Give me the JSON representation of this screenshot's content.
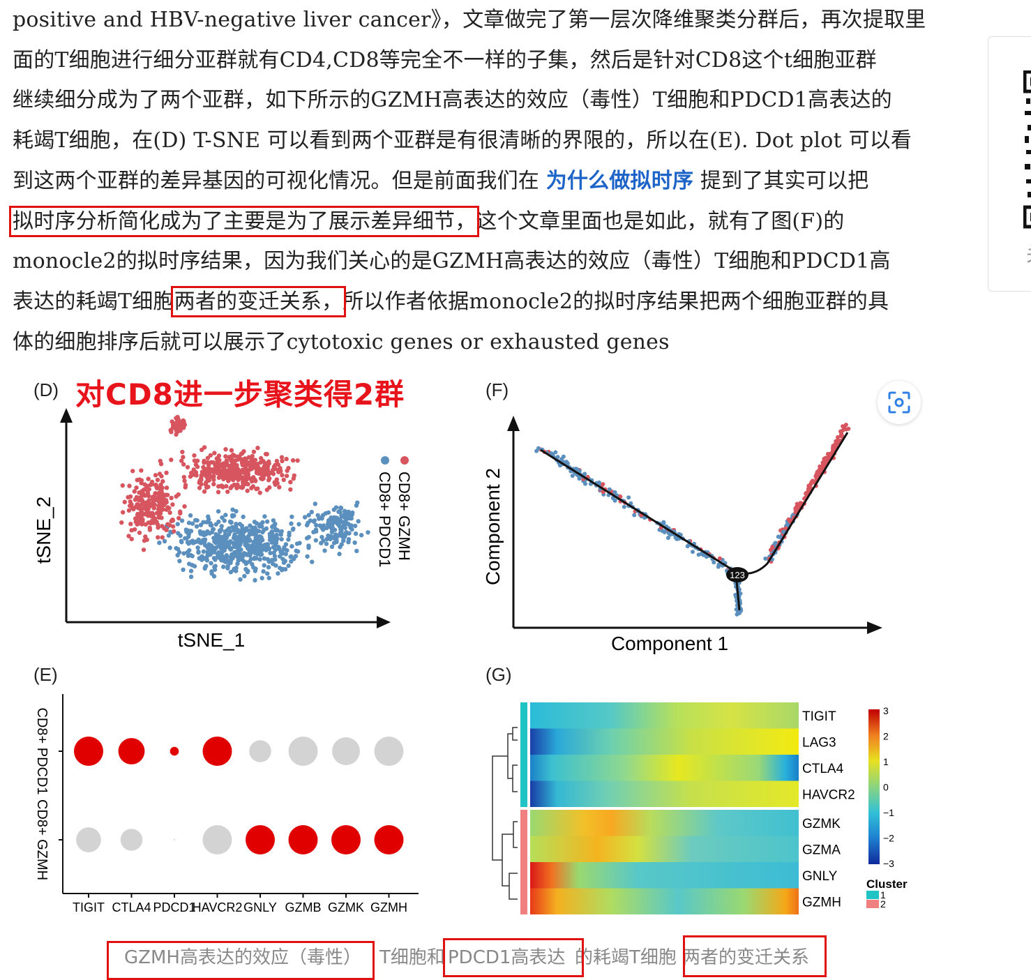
{
  "paragraph": {
    "line1": "positive and HBV-negative  liver cancer》，文章做完了第一层次降维聚类分群后，再次提取里",
    "line2": "面的T细胞进行细分亚群就有CD4,CD8等完全不一样的子集，然后是针对CD8这个t细胞亚群",
    "line3": "继续细分成为了两个亚群，如下所示的GZMH高表达的效应（毒性）T细胞和PDCD1高表达的",
    "line4": "耗竭T细胞，在(D) T-SNE 可以看到两个亚群是有很清晰的界限的，所以在(E). Dot plot 可以看",
    "line5_a": "到这两个亚群的差异基因的可视化情况。但是前面我们在 ",
    "line5_link": "为什么做拟时序",
    "line5_b": " 提到了其实可以把",
    "line6_hl": "拟时序分析简化成为了主要是为了展示差异细节，",
    "line6_b": "这个文章里面也是如此，就有了图(F)的",
    "line7": "monocle2的拟时序结果，因为我们关心的是GZMH高表达的效应（毒性）T细胞和PDCD1高",
    "line8_a": "表达的耗竭T细胞",
    "line8_hl": "两者的变迁关系，",
    "line8_b": "所以作者依据monocle2的拟时序结果把两个细胞亚群的具",
    "line9": "体的细胞排序后就可以展示了cytotoxic genes or exhausted genes"
  },
  "sidebar": {
    "partial_text": "关"
  },
  "figure": {
    "overlay_title": "对CD8进一步聚类得2群",
    "panel_D": "(D)",
    "panel_E": "(E)",
    "panel_F": "(F)",
    "panel_G": "(G)",
    "colors": {
      "gzmh": "#d6555e",
      "pdcd1": "#5b8fbd",
      "dot_high": "#e00000",
      "dot_low": "#d3d3d3"
    }
  },
  "chart_data": [
    {
      "type": "scatter",
      "title": "",
      "xlabel": "tSNE_1",
      "ylabel": "tSNE_2",
      "legend": [
        "CD8+ GZMH",
        "CD8+ PDCD1"
      ],
      "legend_placement": "right, rotated"
    },
    {
      "type": "scatter",
      "title": "",
      "xlabel": "",
      "ylabel": "",
      "rows": [
        "CD8+ PDCD1",
        "CD8+ GZMH"
      ],
      "genes": [
        "TIGIT",
        "CTLA4",
        "PDCD1",
        "HAVCR2",
        "GNLY",
        "GZMB",
        "GZMK",
        "GZMH"
      ],
      "size_pdcd1": [
        1.0,
        0.9,
        0.3,
        1.0,
        0.75,
        1.0,
        0.95,
        1.0
      ],
      "high_pdcd1": [
        true,
        true,
        true,
        true,
        false,
        false,
        false,
        false
      ],
      "size_gzmh": [
        0.85,
        0.75,
        0.05,
        1.0,
        1.0,
        1.0,
        1.0,
        1.0
      ],
      "high_gzmh": [
        false,
        false,
        false,
        false,
        true,
        true,
        true,
        true
      ]
    },
    {
      "type": "line",
      "title": "",
      "xlabel": "Component 1",
      "ylabel": "Component 2",
      "branch_node_label": "123"
    },
    {
      "type": "heatmap",
      "title": "",
      "genes": [
        "TIGIT",
        "LAG3",
        "CTLA4",
        "HAVCR2",
        "GZMK",
        "GZMA",
        "GNLY",
        "GZMH"
      ],
      "scale_ticks": [
        "3",
        "2",
        "1",
        "0",
        "−1",
        "−2",
        "−3"
      ],
      "legend_title": "Cluster",
      "clusters": [
        "1",
        "2"
      ],
      "cluster_colors": [
        "#20c4c4",
        "#f08080"
      ]
    }
  ],
  "caption": {
    "part1": "GZMH高表达的效应（毒性）",
    "part2": "T细胞和",
    "part3": "PDCD1高表达",
    "part4": "的耗竭T细胞",
    "part5": "两者的变迁关系"
  }
}
